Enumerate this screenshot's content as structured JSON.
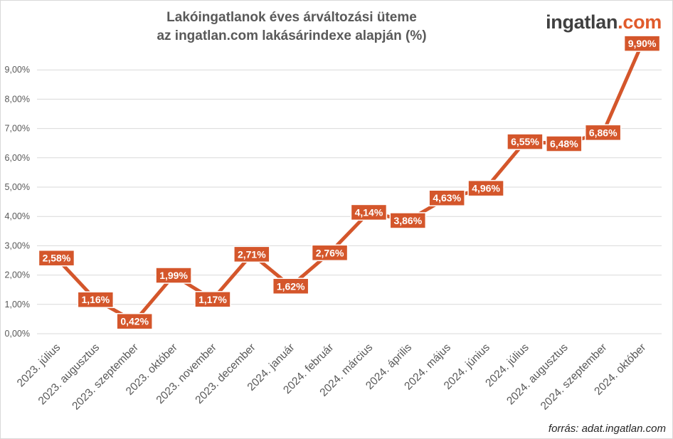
{
  "chart_data": {
    "type": "line",
    "title_line1": "Lakóingatlanok éves árváltozási üteme",
    "title_line2": "az ingatlan.com lakásárindexe alapján (%)",
    "categories": [
      "2023. július",
      "2023. augusztus",
      "2023. szeptember",
      "2023. október",
      "2023. november",
      "2023. december",
      "2024. január",
      "2024. február",
      "2024. március",
      "2024. április",
      "2024. május",
      "2024. június",
      "2024. július",
      "2024. augusztus",
      "2024. szeptember",
      "2024. október"
    ],
    "series": [
      {
        "values": [
          2.58,
          1.16,
          0.42,
          1.99,
          1.17,
          2.71,
          1.62,
          2.76,
          4.14,
          3.86,
          4.63,
          4.96,
          6.55,
          6.48,
          6.86,
          9.9
        ]
      }
    ],
    "data_labels": [
      "2,58%",
      "1,16%",
      "0,42%",
      "1,99%",
      "1,17%",
      "2,71%",
      "1,62%",
      "2,76%",
      "4,14%",
      "3,86%",
      "4,63%",
      "4,96%",
      "6,55%",
      "6,48%",
      "6,86%",
      "9,90%"
    ],
    "y_ticks": [
      0,
      1,
      2,
      3,
      4,
      5,
      6,
      7,
      8,
      9
    ],
    "y_tick_labels": [
      "0,00%",
      "1,00%",
      "2,00%",
      "3,00%",
      "4,00%",
      "5,00%",
      "6,00%",
      "7,00%",
      "8,00%",
      "9,00%"
    ],
    "ylim": [
      0,
      10
    ],
    "grid": true,
    "line_color": "#d4562b",
    "label_bg_color": "#d4562b",
    "grid_color": "#d9d9d9"
  },
  "logo": {
    "part1": "ingatlan",
    "part2": ".com"
  },
  "source": "forrás: adat.ingatlan.com"
}
